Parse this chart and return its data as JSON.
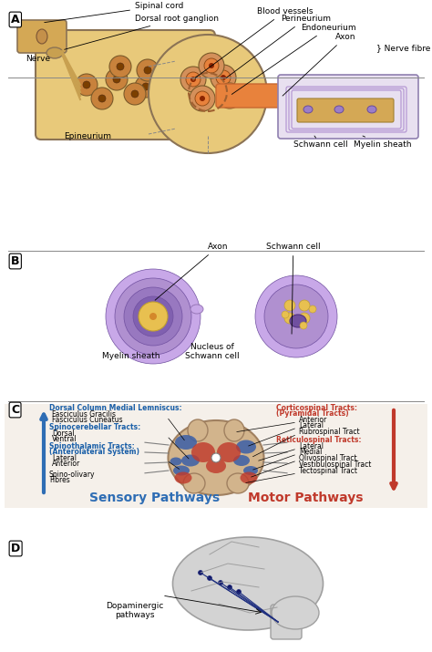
{
  "background_color": "#ffffff",
  "colors": {
    "nerve_outer": "#E8C97A",
    "nerve_inner": "#D4A855",
    "fascicle": "#C8823C",
    "blood_vessel_inner": "#7B3F00",
    "axon_color": "#E8823C",
    "myelin_purple": "#9B7EC8",
    "myelin_light": "#C8A8E8",
    "schwann_nucleus": "#6A4C9C",
    "spine_bg": "#D2B48C",
    "spine_blue": "#3A5FA8",
    "spine_red": "#C0392B",
    "arrow_blue": "#2E6DB4",
    "arrow_red": "#C0392B",
    "brain_color": "#D3D3D3",
    "brain_line": "#A0A0A0",
    "label_blue": "#1A5FA8",
    "label_red": "#C0392B",
    "text_black": "#000000",
    "border_color": "#888888"
  },
  "section_A": {
    "title_labels": [
      "Sipinal cord",
      "Dorsal root ganglion",
      "Nerve",
      "Blood vessels",
      "Perineurium",
      "Endoneurium",
      "Axon",
      "Nerve fibre",
      "Epineurium",
      "Schwann cell",
      "Myelin sheath"
    ]
  },
  "section_B": {
    "labels": [
      "Axon",
      "Schwann cell",
      "Myelin sheath",
      "Nucleus of\nSchwann cell"
    ]
  },
  "section_C": {
    "left_labels_blue": [
      "Dorsal Column Medial Lemniscus:",
      "Fasciculus Gracilis",
      "Fasciculus Cuneatus",
      "Spinocerebellar Tracts:",
      "Dorsal",
      "Ventral",
      "Spinothalamic Tracts:",
      "(Anterolateral System)",
      "Lateral",
      "Anterior",
      "Spino-olivary",
      "Fibres"
    ],
    "right_labels_red": [
      "Corticospinal Tracts:",
      "(Pyramidal Tracts)",
      "Reticulospinal Tracts:"
    ],
    "right_labels_black": [
      "Anterior",
      "Lateral",
      "Rubrospinal Tract",
      "Lateral",
      "Medial",
      "Olivospinal Tract",
      "Vestibulospinal Tract",
      "Tectospinal Tract"
    ],
    "bottom_left": "Sensory Pathways",
    "bottom_right": "Motor Pathways"
  },
  "section_D": {
    "label": "Dopaminergic\npathways"
  }
}
